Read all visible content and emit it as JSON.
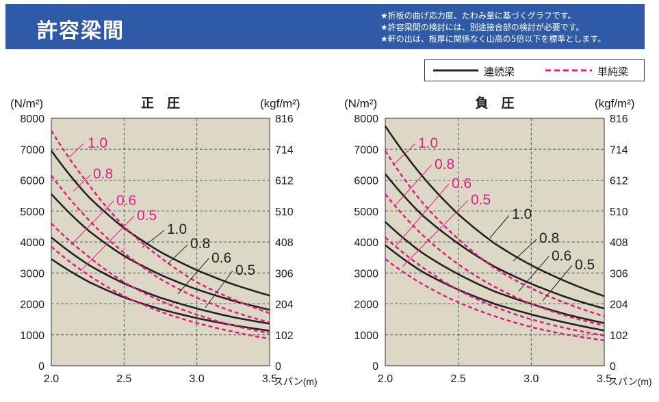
{
  "header": {
    "title": "許容梁間",
    "notes": [
      "★折板の曲げ応力度、たわみ量に基づくグラフです。",
      "★許容梁間の検討には、別途接合部の検討が必要です。",
      "★軒の出は、板厚に関係なく山高の5倍以下を標準とします。"
    ]
  },
  "legend": {
    "continuous": "連続梁",
    "simple": "単純梁"
  },
  "colors": {
    "header_bg": "#2f5aa8",
    "plot_bg": "#ddd7c6",
    "continuous": "#222222",
    "simple": "#e0207f"
  },
  "chart_data": [
    {
      "type": "line",
      "title": "正　圧",
      "ylabel_left": "(N/m²)",
      "ylabel_right": "(kgf/m²)",
      "xlabel": "スパン(m)",
      "xlim": [
        2.0,
        3.5
      ],
      "ylim": [
        0,
        8000
      ],
      "x_ticks": [
        "2.0",
        "2.5",
        "3.0",
        "3.5"
      ],
      "y_ticks": [
        0,
        1000,
        2000,
        3000,
        4000,
        5000,
        6000,
        7000,
        8000
      ],
      "y_ticks_right": [
        "0",
        "102",
        "204",
        "306",
        "408",
        "510",
        "612",
        "714",
        "816"
      ],
      "grid": true,
      "series": [
        {
          "name": "1.0",
          "style": "continuous",
          "x": [
            2.0,
            2.25,
            2.5,
            2.75,
            3.0,
            3.25,
            3.5
          ],
          "y": [
            6950,
            5490,
            4450,
            3680,
            3090,
            2630,
            2270
          ]
        },
        {
          "name": "0.8",
          "style": "continuous",
          "x": [
            2.0,
            2.25,
            2.5,
            2.75,
            3.0,
            3.25,
            3.5
          ],
          "y": [
            5550,
            4390,
            3550,
            2940,
            2470,
            2100,
            1810
          ]
        },
        {
          "name": "0.6",
          "style": "continuous",
          "x": [
            2.0,
            2.25,
            2.5,
            2.75,
            3.0,
            3.25,
            3.5
          ],
          "y": [
            4150,
            3280,
            2660,
            2200,
            1850,
            1570,
            1360
          ]
        },
        {
          "name": "0.5",
          "style": "continuous",
          "x": [
            2.0,
            2.25,
            2.5,
            2.75,
            3.0,
            3.25,
            3.5
          ],
          "y": [
            3450,
            2730,
            2210,
            1830,
            1540,
            1310,
            1130
          ]
        },
        {
          "name": "1.0",
          "style": "simple",
          "x": [
            2.0,
            2.25,
            2.5,
            2.75,
            3.0,
            3.25,
            3.5
          ],
          "y": [
            7600,
            5900,
            4500,
            3500,
            2700,
            2150,
            1700
          ]
        },
        {
          "name": "0.8",
          "style": "simple",
          "x": [
            2.0,
            2.25,
            2.5,
            2.75,
            3.0,
            3.25,
            3.5
          ],
          "y": [
            6150,
            4750,
            3650,
            2800,
            2200,
            1750,
            1400
          ]
        },
        {
          "name": "0.6",
          "style": "simple",
          "x": [
            2.0,
            2.25,
            2.5,
            2.75,
            3.0,
            3.25,
            3.5
          ],
          "y": [
            4600,
            3550,
            2700,
            2100,
            1650,
            1300,
            1050
          ]
        },
        {
          "name": "0.5",
          "style": "simple",
          "x": [
            2.0,
            2.25,
            2.5,
            2.75,
            3.0,
            3.25,
            3.5
          ],
          "y": [
            3850,
            2950,
            2250,
            1750,
            1380,
            1100,
            870
          ]
        }
      ]
    },
    {
      "type": "line",
      "title": "負　圧",
      "ylabel_left": "(N/m²)",
      "ylabel_right": "(kgf/m²)",
      "xlabel": "スパン(m)",
      "xlim": [
        2.0,
        3.5
      ],
      "ylim": [
        0,
        8000
      ],
      "x_ticks": [
        "2.0",
        "2.5",
        "3.0",
        "3.5"
      ],
      "y_ticks": [
        0,
        1000,
        2000,
        3000,
        4000,
        5000,
        6000,
        7000,
        8000
      ],
      "y_ticks_right": [
        "0",
        "102",
        "204",
        "306",
        "408",
        "510",
        "612",
        "714",
        "816"
      ],
      "grid": true,
      "series": [
        {
          "name": "1.0",
          "style": "continuous",
          "x": [
            2.0,
            2.25,
            2.5,
            2.75,
            3.0,
            3.25,
            3.5
          ],
          "y": [
            7750,
            6150,
            4900,
            3950,
            3250,
            2700,
            2250
          ]
        },
        {
          "name": "0.8",
          "style": "continuous",
          "x": [
            2.0,
            2.25,
            2.5,
            2.75,
            3.0,
            3.25,
            3.5
          ],
          "y": [
            6200,
            4880,
            3950,
            3200,
            2650,
            2200,
            1850
          ]
        },
        {
          "name": "0.6",
          "style": "continuous",
          "x": [
            2.0,
            2.25,
            2.5,
            2.75,
            3.0,
            3.25,
            3.5
          ],
          "y": [
            4650,
            3660,
            2960,
            2400,
            2000,
            1650,
            1380
          ]
        },
        {
          "name": "0.5",
          "style": "continuous",
          "x": [
            2.0,
            2.25,
            2.5,
            2.75,
            3.0,
            3.25,
            3.5
          ],
          "y": [
            3900,
            3050,
            2460,
            2000,
            1660,
            1380,
            1140
          ]
        },
        {
          "name": "1.0",
          "style": "simple",
          "x": [
            2.0,
            2.25,
            2.5,
            2.75,
            3.0,
            3.25,
            3.5
          ],
          "y": [
            6950,
            5300,
            4100,
            3150,
            2500,
            2000,
            1600
          ]
        },
        {
          "name": "0.8",
          "style": "simple",
          "x": [
            2.0,
            2.25,
            2.5,
            2.75,
            3.0,
            3.25,
            3.5
          ],
          "y": [
            5550,
            4250,
            3280,
            2550,
            2000,
            1600,
            1300
          ]
        },
        {
          "name": "0.6",
          "style": "simple",
          "x": [
            2.0,
            2.25,
            2.5,
            2.75,
            3.0,
            3.25,
            3.5
          ],
          "y": [
            4150,
            3200,
            2450,
            1900,
            1500,
            1200,
            980
          ]
        },
        {
          "name": "0.5",
          "style": "simple",
          "x": [
            2.0,
            2.25,
            2.5,
            2.75,
            3.0,
            3.25,
            3.5
          ],
          "y": [
            3450,
            2650,
            2050,
            1600,
            1250,
            1000,
            820
          ]
        }
      ]
    }
  ]
}
